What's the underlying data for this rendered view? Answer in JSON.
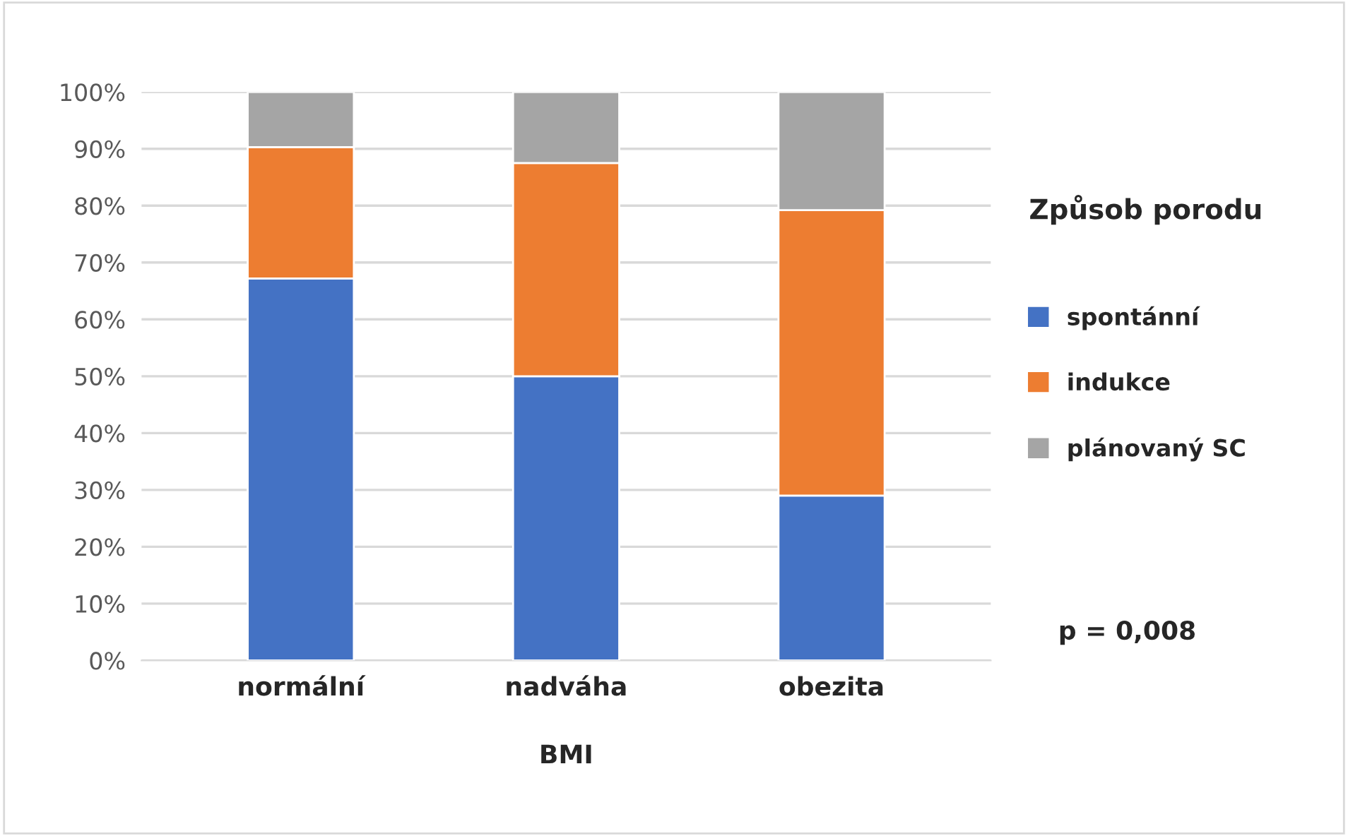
{
  "chart_data": {
    "type": "bar",
    "stacked": true,
    "xlabel": "BMI",
    "legend_title": "Způsob porodu",
    "categories": [
      "normální",
      "nadváha",
      "obezita"
    ],
    "series": [
      {
        "name": "spontánní",
        "color": "#4472c4",
        "values": [
          67.2,
          50,
          29
        ]
      },
      {
        "name": "indukce",
        "color": "#ed7d31",
        "values": [
          23.1,
          37.5,
          50.2
        ]
      },
      {
        "name": "plánovaný SC",
        "color": "#a5a5a5",
        "values": [
          9.7,
          12.5,
          20.8
        ]
      }
    ],
    "ylim": [
      0,
      100
    ],
    "yticks": [
      {
        "value": 0,
        "label": "0%"
      },
      {
        "value": 10,
        "label": "10%"
      },
      {
        "value": 20,
        "label": "20%"
      },
      {
        "value": 30,
        "label": "30%"
      },
      {
        "value": 40,
        "label": "40%"
      },
      {
        "value": 50,
        "label": "50%"
      },
      {
        "value": 60,
        "label": "60%"
      },
      {
        "value": 70,
        "label": "70%"
      },
      {
        "value": 80,
        "label": "80%"
      },
      {
        "value": 90,
        "label": "90%"
      },
      {
        "value": 100,
        "label": "100%"
      }
    ],
    "grid": "y",
    "legend": "right",
    "annotations": [
      "p = 0,008"
    ]
  }
}
